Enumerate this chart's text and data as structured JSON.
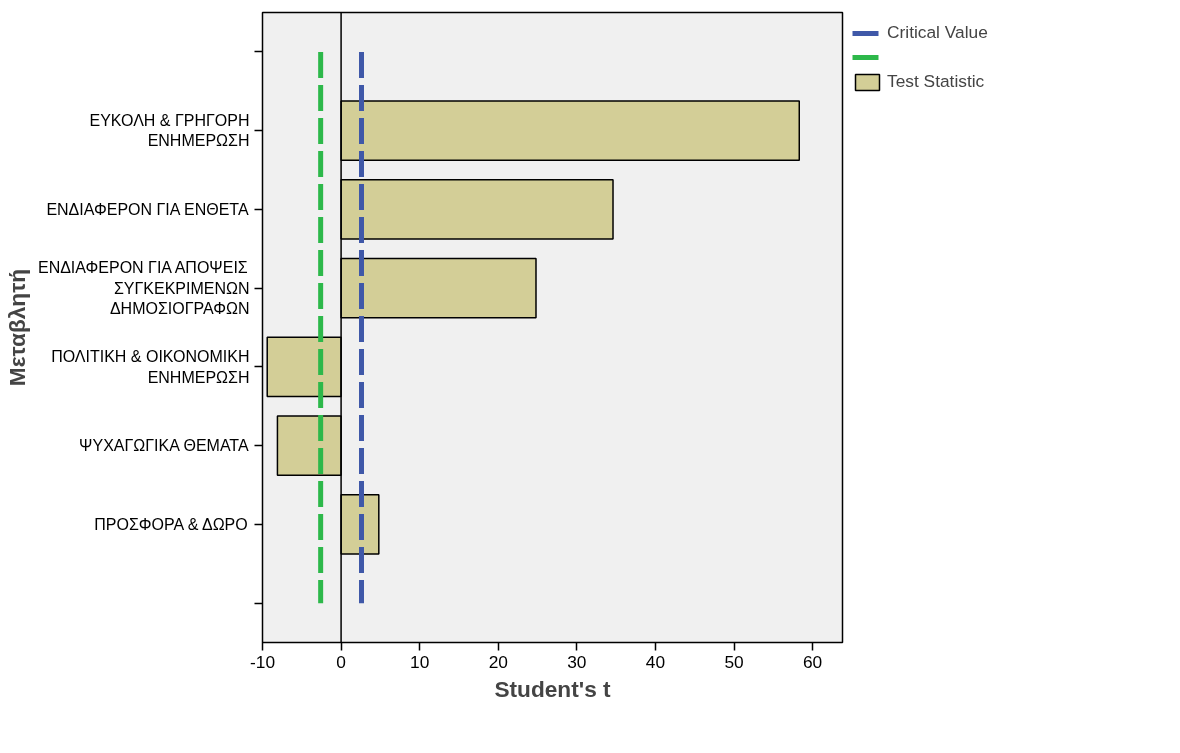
{
  "chart_data": {
    "type": "bar",
    "orientation": "horizontal",
    "xlabel": "Student's t",
    "ylabel": "Μεταβλητή",
    "categories": [
      null,
      "ΕΥΚΟΛΗ & ΓΡΗΓΟΡΗ\nΕΝΗΜΕΡΩΣΗ",
      "ΕΝΔΙΑΦΕΡΟΝ ΓΙΑ ΕΝΘΕΤΑ",
      "ΕΝΔΙΑΦΕΡΟΝ ΓΙΑ ΑΠΟΨΕΙΣ\nΣΥΓΚΕΚΡΙΜΕΝΩΝ\nΔΗΜΟΣΙΟΓΡΑΦΩΝ",
      "ΠΟΛΙΤΙΚΗ & ΟΙΚΟΝΟΜΙΚΗ\nΕΝΗΜΕΡΩΣΗ",
      "ΨΥΧΑΓΩΓΙΚΑ ΘΕΜΑΤΑ",
      "ΠΡΟΣΦΟΡΑ & ΔΩΡΟ",
      null
    ],
    "series": [
      {
        "name": "Test Statistic",
        "color": "#d3ce97",
        "values": [
          null,
          58.3,
          34.6,
          24.8,
          -9.4,
          -8.1,
          4.8,
          null
        ]
      }
    ],
    "ref_lines": [
      {
        "axis": "x",
        "value": 2.6,
        "label": "Critical Value",
        "color": "#3f58a8",
        "line_style": "dashed"
      },
      {
        "axis": "x",
        "value": -2.6,
        "color": "#2db84a",
        "line_style": "dashed"
      },
      {
        "axis": "x",
        "value": 0,
        "color": "#000000",
        "line_style": "solid"
      }
    ],
    "xlim": [
      -10,
      63.8
    ],
    "xticks": [
      -10,
      0,
      10,
      20,
      30,
      40,
      50,
      60
    ],
    "grid": false,
    "legend": "top right"
  }
}
